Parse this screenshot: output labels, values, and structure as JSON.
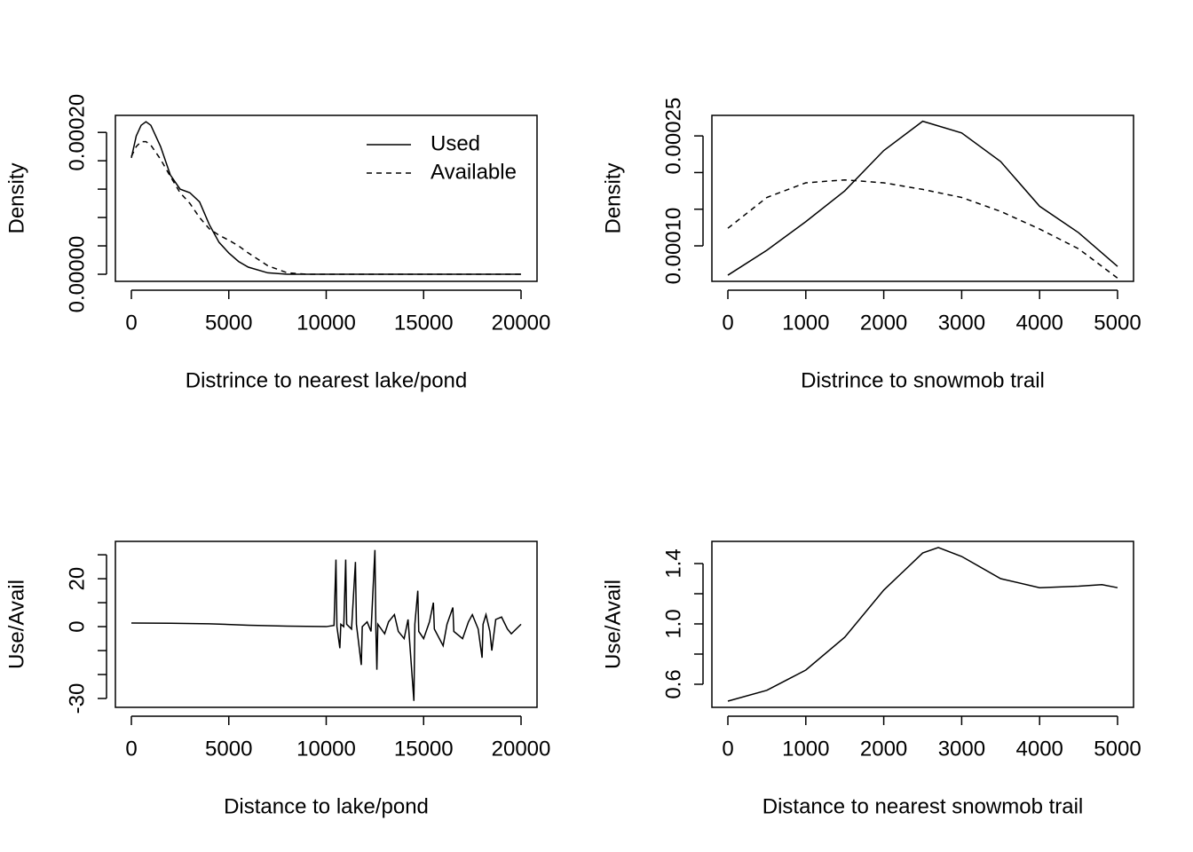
{
  "chart_data": [
    {
      "type": "line",
      "xlabel": "Distrince to nearest lake/pond",
      "ylabel": "Density",
      "xlim": [
        -820,
        20820
      ],
      "xticks": [
        0,
        5000,
        10000,
        15000,
        20000
      ],
      "ylim": [
        -1e-05,
        0.000224
      ],
      "yticks": [
        {
          "value": 0,
          "label": "0.00000"
        },
        {
          "value": 0.0002,
          "label": "0.00020"
        }
      ],
      "yminorticks": [
        4e-05,
        8e-05,
        0.00012,
        0.00016
      ],
      "legend": "topright",
      "x": [
        0,
        250,
        500,
        750,
        1000,
        1500,
        2000,
        2500,
        3000,
        3500,
        4000,
        4500,
        5000,
        5500,
        6000,
        7000,
        8000,
        9000,
        10000,
        15000,
        20000
      ],
      "series": [
        {
          "name": "Used",
          "color": "#000000",
          "linestyle": "solid",
          "values": [
            0.000164,
            0.000195,
            0.00021,
            0.000215,
            0.00021,
            0.00018,
            0.00014,
            0.00012,
            0.000115,
            0.000102,
            7e-05,
            4.5e-05,
            3e-05,
            1.8e-05,
            1e-05,
            2e-06,
            0,
            0,
            0,
            0,
            0
          ]
        },
        {
          "name": "Available",
          "color": "#000000",
          "linestyle": "dashed",
          "values": [
            0.000166,
            0.00018,
            0.000187,
            0.000187,
            0.000182,
            0.000162,
            0.000138,
            0.000115,
            0.0001,
            8e-05,
            6.4e-05,
            5.5e-05,
            4.8e-05,
            4e-05,
            3e-05,
            1.2e-05,
            2e-06,
            0,
            0,
            0,
            0
          ]
        }
      ]
    },
    {
      "type": "line",
      "xlabel": "Distrince to snowmob trail",
      "ylabel": "Density",
      "xlim": [
        -205,
        5205
      ],
      "xticks": [
        0,
        1000,
        2000,
        3000,
        4000,
        5000
      ],
      "ylim": [
        5.16e-05,
        0.000278
      ],
      "yticks": [
        {
          "value": 0.0001,
          "label": "0.00010"
        },
        {
          "value": 0.00025,
          "label": "0.00025"
        }
      ],
      "yminorticks": [
        0.00015,
        0.0002
      ],
      "x": [
        0,
        500,
        1000,
        1500,
        2000,
        2500,
        3000,
        3500,
        4000,
        4500,
        5000
      ],
      "series": [
        {
          "color": "#000000",
          "linestyle": "solid",
          "values": [
            6e-05,
            9.4e-05,
            0.000133,
            0.000175,
            0.00023,
            0.00027,
            0.000254,
            0.000215,
            0.000154,
            0.000118,
            7.2e-05
          ]
        },
        {
          "color": "#000000",
          "linestyle": "dashed",
          "values": [
            0.000124,
            0.000166,
            0.000186,
            0.00019,
            0.000186,
            0.000177,
            0.000166,
            0.000147,
            0.000123,
            9.6e-05,
            5.6e-05
          ]
        }
      ]
    },
    {
      "type": "line",
      "xlabel": "Distance to lake/pond",
      "ylabel": "Use/Avail",
      "xlim": [
        -820,
        20820
      ],
      "xticks": [
        0,
        5000,
        10000,
        15000,
        20000
      ],
      "ylim": [
        -33.7,
        35.6
      ],
      "yticks": [
        20,
        0,
        -30
      ],
      "yminorticks": [
        -20,
        -10,
        10,
        30
      ],
      "x": [
        0,
        2000,
        4000,
        6000,
        8000,
        10000,
        10400,
        10500,
        10550,
        10700,
        10750,
        10900,
        11000,
        11050,
        11300,
        11500,
        11550,
        11800,
        11850,
        12100,
        12300,
        12500,
        12550,
        12600,
        12650,
        13000,
        13200,
        13500,
        13700,
        14000,
        14200,
        14500,
        14550,
        14700,
        14750,
        15000,
        15300,
        15500,
        15550,
        16000,
        16200,
        16500,
        16550,
        17000,
        17300,
        17500,
        17800,
        18000,
        18050,
        18200,
        18400,
        18500,
        18700,
        19000,
        19300,
        19500,
        20000
      ],
      "series": [
        {
          "color": "#000000",
          "linestyle": "solid",
          "values": [
            1.5,
            1.4,
            1.2,
            0.6,
            0.2,
            0,
            0.5,
            28,
            0,
            -9,
            1,
            0,
            28,
            1,
            -1,
            27,
            1,
            -16,
            0,
            2,
            -2,
            32,
            -1,
            -18,
            1,
            -3,
            2,
            5,
            -2,
            -5,
            3,
            -31,
            1,
            15,
            -2,
            -5,
            2,
            10,
            -1,
            -8,
            1,
            8,
            -2,
            -5,
            2,
            5,
            -1,
            -13,
            1,
            5,
            -2,
            -10,
            3,
            4,
            -1,
            -3,
            1
          ]
        }
      ]
    },
    {
      "type": "line",
      "xlabel": "Distance to nearest snowmob trail",
      "ylabel": "Use/Avail",
      "xlim": [
        -205,
        5205
      ],
      "xticks": [
        0,
        1000,
        2000,
        3000,
        4000,
        5000
      ],
      "ylim": [
        0.447,
        1.547
      ],
      "yticks": [
        0.6,
        {
          "value": 1,
          "label": "1.0"
        },
        1.4
      ],
      "yminorticks": [
        0.8,
        1.2
      ],
      "x": [
        0,
        500,
        1000,
        1500,
        2000,
        2500,
        2700,
        3000,
        3500,
        4000,
        4500,
        4800,
        5000
      ],
      "series": [
        {
          "color": "#000000",
          "linestyle": "solid",
          "values": [
            0.488,
            0.56,
            0.694,
            0.912,
            1.224,
            1.47,
            1.506,
            1.447,
            1.3,
            1.24,
            1.25,
            1.26,
            1.24
          ]
        }
      ]
    }
  ]
}
